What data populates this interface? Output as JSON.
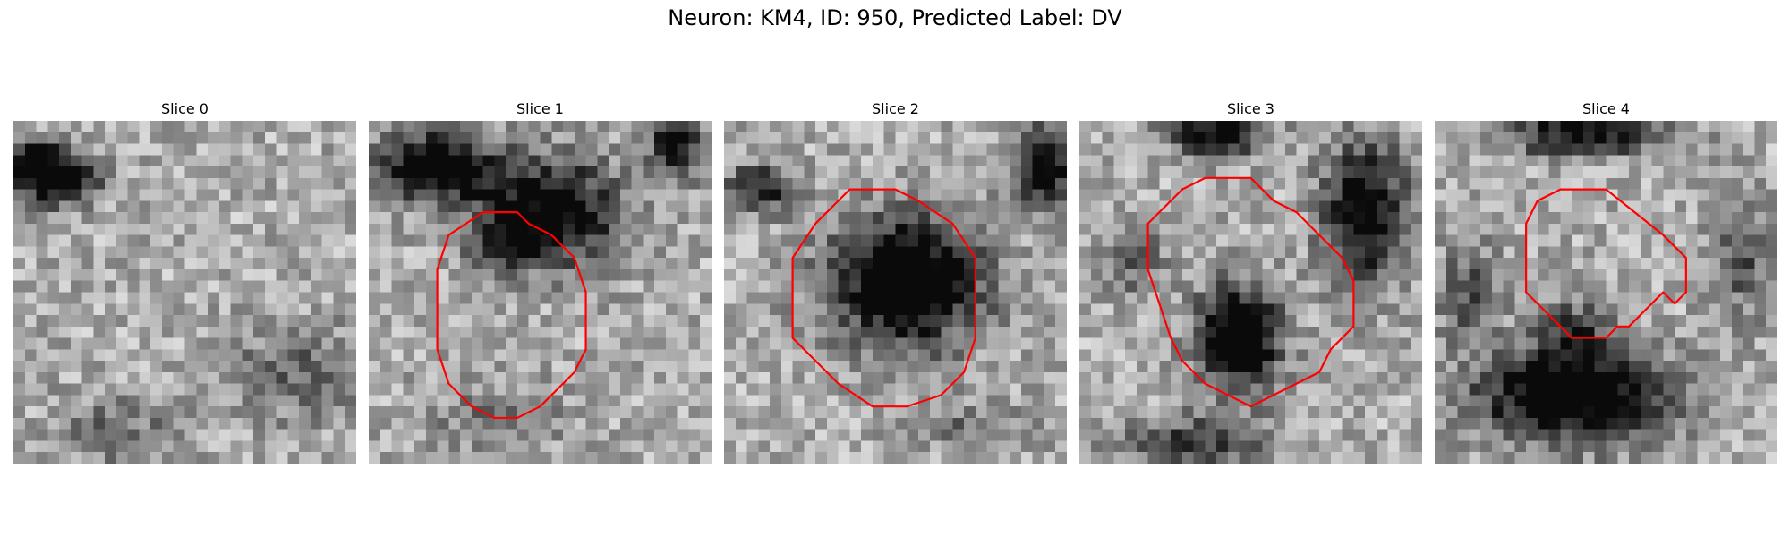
{
  "figure": {
    "title": "Neuron: KM4, ID: 950, Predicted Label: DV",
    "outline_color": "#ff0000",
    "colormap": "grayscale",
    "slices": [
      {
        "title": "Slice 0",
        "dark_regions": [
          [
            3.5,
            5,
            3.8,
            2.2,
            0.9
          ],
          [
            2,
            3,
            1.8,
            1.6,
            0.5
          ],
          [
            25,
            22,
            6,
            4,
            0.3
          ],
          [
            9,
            27,
            5,
            3,
            0.25
          ]
        ],
        "outline": []
      },
      {
        "title": "Slice 1",
        "dark_regions": [
          [
            6,
            4,
            5,
            3,
            0.85
          ],
          [
            16,
            8,
            6,
            4.5,
            0.8
          ],
          [
            12,
            11,
            3,
            2,
            0.35
          ],
          [
            27,
            2,
            2.5,
            3,
            0.6
          ],
          [
            11,
            26,
            6,
            3,
            0.2
          ]
        ],
        "outline": [
          [
            7,
            10
          ],
          [
            10,
            8
          ],
          [
            13,
            8
          ],
          [
            14,
            9
          ],
          [
            16,
            10
          ],
          [
            18,
            12
          ],
          [
            19,
            15
          ],
          [
            19,
            20
          ],
          [
            18,
            22
          ],
          [
            15,
            25
          ],
          [
            13,
            26
          ],
          [
            11,
            26
          ],
          [
            9,
            25
          ],
          [
            7,
            23
          ],
          [
            6,
            20
          ],
          [
            6,
            13
          ]
        ]
      },
      {
        "title": "Slice 2",
        "dark_regions": [
          [
            16,
            14,
            6.5,
            5.5,
            0.95
          ],
          [
            3,
            6,
            3,
            2,
            0.6
          ],
          [
            28,
            4,
            3,
            3.5,
            0.65
          ],
          [
            22,
            27,
            5,
            2,
            0.25
          ]
        ],
        "outline": [
          [
            8,
            9
          ],
          [
            11,
            6
          ],
          [
            15,
            6
          ],
          [
            17,
            7
          ],
          [
            20,
            9
          ],
          [
            22,
            12
          ],
          [
            22,
            19
          ],
          [
            21,
            22
          ],
          [
            19,
            24
          ],
          [
            16,
            25
          ],
          [
            13,
            25
          ],
          [
            10,
            23
          ],
          [
            6,
            19
          ],
          [
            6,
            12
          ]
        ]
      },
      {
        "title": "Slice 3",
        "dark_regions": [
          [
            12,
            1,
            4,
            2,
            0.75
          ],
          [
            25,
            8,
            3.5,
            6,
            0.8
          ],
          [
            14,
            19,
            3.5,
            4.5,
            0.95
          ],
          [
            5,
            12,
            2.5,
            3,
            0.35
          ],
          [
            10,
            28,
            6,
            2,
            0.5
          ]
        ],
        "outline": [
          [
            7,
            8
          ],
          [
            9,
            6
          ],
          [
            11,
            5
          ],
          [
            15,
            5
          ],
          [
            17,
            7
          ],
          [
            19,
            8
          ],
          [
            21,
            10
          ],
          [
            23,
            12
          ],
          [
            24,
            14
          ],
          [
            24,
            18
          ],
          [
            22,
            20
          ],
          [
            21,
            22
          ],
          [
            19,
            23
          ],
          [
            17,
            24
          ],
          [
            15,
            25
          ],
          [
            13,
            24
          ],
          [
            11,
            23
          ],
          [
            9,
            21
          ],
          [
            8,
            19
          ],
          [
            7,
            16
          ],
          [
            6,
            13
          ],
          [
            6,
            9
          ]
        ]
      },
      {
        "title": "Slice 4",
        "dark_regions": [
          [
            13,
            1,
            7,
            2,
            0.7
          ],
          [
            12,
            24,
            8,
            4,
            0.95
          ],
          [
            12,
            18,
            3,
            2,
            0.45
          ],
          [
            3,
            15,
            2.5,
            4,
            0.4
          ],
          [
            27,
            12,
            2.5,
            5,
            0.35
          ]
        ],
        "outline": [
          [
            9,
            7
          ],
          [
            11,
            6
          ],
          [
            15,
            6
          ],
          [
            20,
            10
          ],
          [
            21,
            11
          ],
          [
            22,
            12
          ],
          [
            22,
            15
          ],
          [
            21,
            16
          ],
          [
            20,
            15
          ],
          [
            19,
            16
          ],
          [
            18,
            17
          ],
          [
            17,
            18
          ],
          [
            16,
            18
          ],
          [
            15,
            19
          ],
          [
            12,
            19
          ],
          [
            10,
            17
          ],
          [
            8,
            15
          ],
          [
            8,
            9
          ]
        ]
      }
    ]
  }
}
